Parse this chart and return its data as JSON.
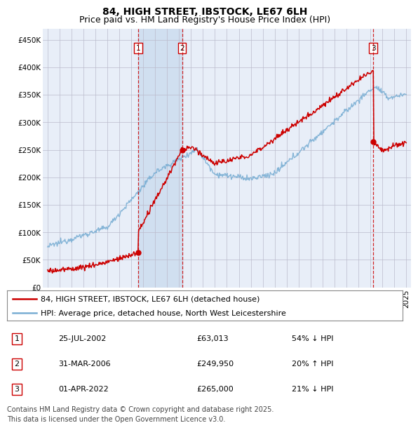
{
  "title": "84, HIGH STREET, IBSTOCK, LE67 6LH",
  "subtitle": "Price paid vs. HM Land Registry's House Price Index (HPI)",
  "ylim": [
    0,
    470000
  ],
  "yticks": [
    0,
    50000,
    100000,
    150000,
    200000,
    250000,
    300000,
    350000,
    400000,
    450000
  ],
  "ytick_labels": [
    "£0",
    "£50K",
    "£100K",
    "£150K",
    "£200K",
    "£250K",
    "£300K",
    "£350K",
    "£400K",
    "£450K"
  ],
  "xlim_start": 1994.6,
  "xlim_end": 2025.4,
  "sale_color": "#cc0000",
  "hpi_color": "#7bafd4",
  "transaction_color": "#cc0000",
  "background_color": "#e8eef8",
  "highlight_color": "#d0dff0",
  "grid_color": "#bbbbcc",
  "legend_label_sale": "84, HIGH STREET, IBSTOCK, LE67 6LH (detached house)",
  "legend_label_hpi": "HPI: Average price, detached house, North West Leicestershire",
  "transactions": [
    {
      "id": 1,
      "date_x": 2002.56,
      "price": 63013,
      "label": "1"
    },
    {
      "id": 2,
      "date_x": 2006.25,
      "price": 249950,
      "label": "2"
    },
    {
      "id": 3,
      "date_x": 2022.25,
      "price": 265000,
      "label": "3"
    }
  ],
  "table_rows": [
    {
      "label": "1",
      "date": "25-JUL-2002",
      "price": "£63,013",
      "hpi_rel": "54% ↓ HPI"
    },
    {
      "label": "2",
      "date": "31-MAR-2006",
      "price": "£249,950",
      "hpi_rel": "20% ↑ HPI"
    },
    {
      "label": "3",
      "date": "01-APR-2022",
      "price": "£265,000",
      "hpi_rel": "21% ↓ HPI"
    }
  ],
  "footnote": "Contains HM Land Registry data © Crown copyright and database right 2025.\nThis data is licensed under the Open Government Licence v3.0.",
  "title_fontsize": 10,
  "subtitle_fontsize": 9,
  "tick_fontsize": 7.5,
  "legend_fontsize": 8,
  "table_fontsize": 8,
  "footnote_fontsize": 7
}
